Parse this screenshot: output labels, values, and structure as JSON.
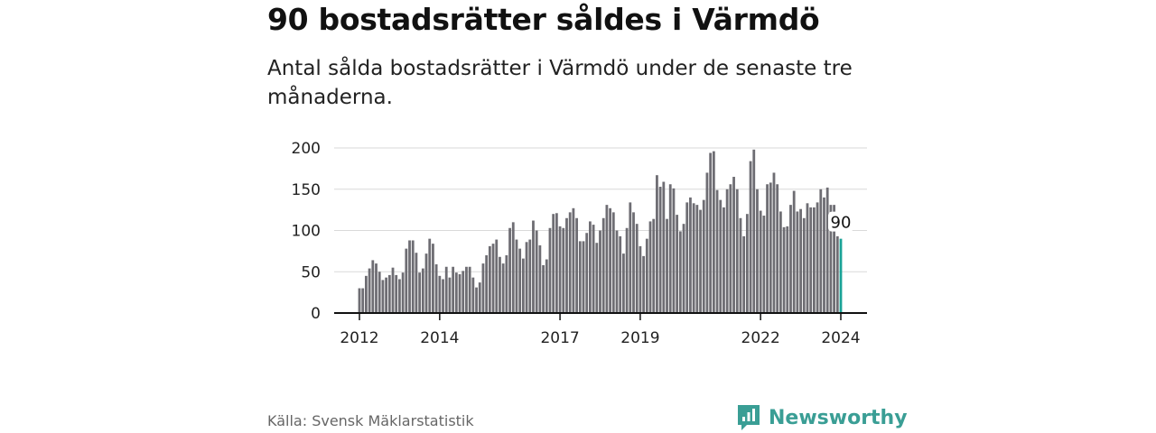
{
  "title": "90 bostadsrätter såldes i Värmdö",
  "subtitle": "Antal sålda bostadsrätter i Värmdö under de senaste tre månaderna.",
  "source": "Källa: Svensk Mäklarstatistik",
  "brand": "Newsworthy",
  "colors": {
    "bar": "#6e6d73",
    "highlight": "#19a397",
    "grid": "#d9d9d9",
    "brand": "#3a9e95"
  },
  "chart_data": {
    "type": "bar",
    "title": "",
    "xlabel": "",
    "ylabel": "",
    "ylim": [
      0,
      200
    ],
    "yticks": [
      0,
      50,
      100,
      150,
      200
    ],
    "xticks": [
      {
        "label": "2012",
        "index": 0
      },
      {
        "label": "2014",
        "index": 24
      },
      {
        "label": "2017",
        "index": 60
      },
      {
        "label": "2019",
        "index": 84
      },
      {
        "label": "2022",
        "index": 120
      },
      {
        "label": "2024",
        "index": 144
      }
    ],
    "start": "2012-01",
    "end": "2024-01",
    "frequency": "monthly",
    "grid": true,
    "annotation": {
      "label": "90",
      "index": 144
    },
    "values": [
      30,
      30,
      45,
      54,
      64,
      60,
      50,
      40,
      43,
      46,
      55,
      46,
      41,
      49,
      78,
      88,
      88,
      73,
      49,
      54,
      72,
      90,
      84,
      59,
      45,
      41,
      56,
      43,
      56,
      49,
      47,
      51,
      56,
      56,
      43,
      31,
      37,
      60,
      70,
      81,
      84,
      89,
      68,
      60,
      70,
      103,
      110,
      89,
      78,
      66,
      86,
      89,
      112,
      100,
      82,
      58,
      65,
      103,
      120,
      121,
      105,
      103,
      115,
      122,
      127,
      115,
      87,
      87,
      97,
      111,
      107,
      85,
      100,
      115,
      131,
      127,
      122,
      100,
      93,
      72,
      103,
      134,
      122,
      108,
      81,
      69,
      90,
      111,
      114,
      167,
      153,
      159,
      114,
      156,
      151,
      119,
      99,
      108,
      134,
      140,
      133,
      131,
      125,
      137,
      170,
      194,
      196,
      149,
      137,
      128,
      150,
      156,
      165,
      150,
      115,
      93,
      120,
      184,
      198,
      150,
      124,
      118,
      156,
      158,
      170,
      156,
      123,
      104,
      105,
      131,
      148,
      123,
      126,
      115,
      133,
      128,
      128,
      134,
      150,
      140,
      152,
      131,
      131,
      93,
      90
    ]
  }
}
